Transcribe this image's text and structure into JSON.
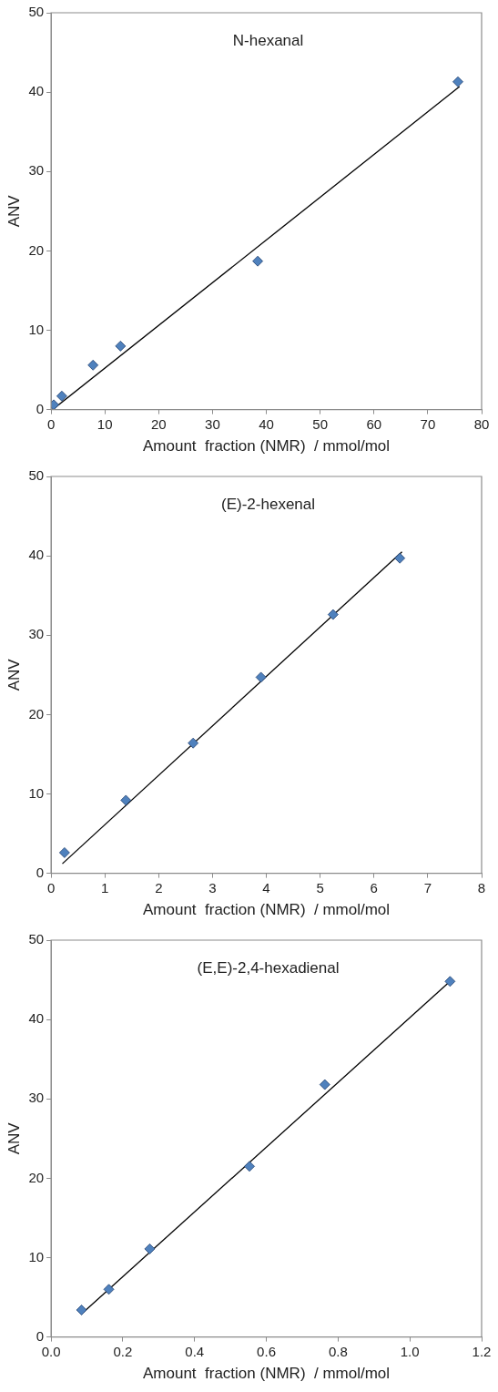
{
  "chart_data": [
    {
      "type": "scatter",
      "title": "N-hexanal",
      "xlabel": "Amount  fraction (NMR)  / mmol/mol",
      "ylabel": "ANV",
      "xlim": [
        0,
        80
      ],
      "xticks": [
        0,
        10,
        20,
        30,
        40,
        50,
        60,
        70,
        80
      ],
      "ylim": [
        0,
        50
      ],
      "yticks": [
        0,
        10,
        20,
        30,
        40,
        50
      ],
      "grid": false,
      "legend": false,
      "series": [
        {
          "type": "scatter",
          "marker": "diamond",
          "color": "#4f81bd",
          "x": [
            0.5,
            2.0,
            7.8,
            12.9,
            38.4,
            75.6
          ],
          "values": [
            0.6,
            1.7,
            5.6,
            8.0,
            18.7,
            41.3
          ]
        },
        {
          "type": "line",
          "marker": "none",
          "color": "#000000",
          "x": [
            0.3,
            75.9
          ],
          "values": [
            0,
            40.7
          ]
        }
      ]
    },
    {
      "type": "scatter",
      "title": "(E)-2-hexenal",
      "xlabel": "Amount  fraction (NMR)  / mmol/mol",
      "ylabel": "ANV",
      "xlim": [
        0,
        8
      ],
      "xticks": [
        0,
        1,
        2,
        3,
        4,
        5,
        6,
        7,
        8
      ],
      "ylim": [
        0,
        50
      ],
      "yticks": [
        0,
        10,
        20,
        30,
        40,
        50
      ],
      "grid": false,
      "legend": false,
      "series": [
        {
          "type": "scatter",
          "marker": "diamond",
          "color": "#4f81bd",
          "x": [
            0.25,
            1.39,
            2.64,
            3.9,
            5.24,
            6.48
          ],
          "values": [
            2.6,
            9.2,
            16.4,
            24.7,
            32.6,
            39.7
          ]
        },
        {
          "type": "line",
          "marker": "none",
          "color": "#000000",
          "x": [
            0.21,
            6.52
          ],
          "values": [
            1.2,
            40.5
          ]
        }
      ]
    },
    {
      "type": "scatter",
      "title": "(E,E)-2,4-hexadienal",
      "xlabel": "Amount  fraction (NMR)  / mmol/mol",
      "ylabel": "ANV",
      "xlim": [
        0,
        1.2
      ],
      "xticks": [
        {
          "value": 0,
          "label": "0.0"
        },
        {
          "value": 0.2,
          "label": "0.2"
        },
        {
          "value": 0.4,
          "label": "0.4"
        },
        {
          "value": 0.6,
          "label": "0.6"
        },
        {
          "value": 0.8,
          "label": "0.8"
        },
        {
          "value": 1.0,
          "label": "1.0"
        },
        {
          "value": 1.2,
          "label": "1.2"
        }
      ],
      "ylim": [
        0,
        50
      ],
      "yticks": [
        0,
        10,
        20,
        30,
        40,
        50
      ],
      "grid": false,
      "legend": false,
      "series": [
        {
          "type": "scatter",
          "marker": "diamond",
          "color": "#4f81bd",
          "x": [
            0.085,
            0.161,
            0.275,
            0.553,
            0.763,
            1.112
          ],
          "values": [
            3.4,
            6.0,
            11.1,
            21.5,
            31.8,
            44.8
          ]
        },
        {
          "type": "line",
          "marker": "none",
          "color": "#000000",
          "x": [
            0.09,
            1.107
          ],
          "values": [
            3.1,
            44.6
          ]
        }
      ]
    }
  ]
}
